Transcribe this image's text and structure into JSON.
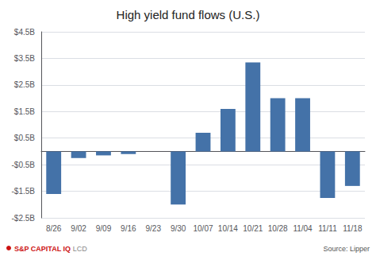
{
  "chart_data": {
    "type": "bar",
    "title": "High yield fund flows (U.S.)",
    "categories": [
      "8/26",
      "9/02",
      "9/09",
      "9/16",
      "9/23",
      "9/30",
      "10/07",
      "10/14",
      "10/21",
      "10/28",
      "11/04",
      "11/11",
      "11/18"
    ],
    "values": [
      -1.6,
      -0.25,
      -0.15,
      -0.1,
      0.0,
      -2.0,
      0.7,
      1.6,
      3.35,
      2.0,
      2.0,
      -1.75,
      -1.3
    ],
    "color": "#4472a8",
    "ylim": [
      -2.5,
      4.5
    ],
    "yticks": [
      {
        "value": -2.5,
        "label": "-$2.5B"
      },
      {
        "value": -1.5,
        "label": "-$1.5B"
      },
      {
        "value": -0.5,
        "label": "-$0.5B"
      },
      {
        "value": 0.5,
        "label": "$0.5B"
      },
      {
        "value": 1.5,
        "label": "$1.5B"
      },
      {
        "value": 2.5,
        "label": "$2.5B"
      },
      {
        "value": 3.5,
        "label": "$3.5B"
      },
      {
        "value": 4.5,
        "label": "$4.5B"
      }
    ],
    "grid": true,
    "annotations": [
      "Source: Lipper",
      "S&P CAPITAL IQ",
      "LCD"
    ]
  }
}
